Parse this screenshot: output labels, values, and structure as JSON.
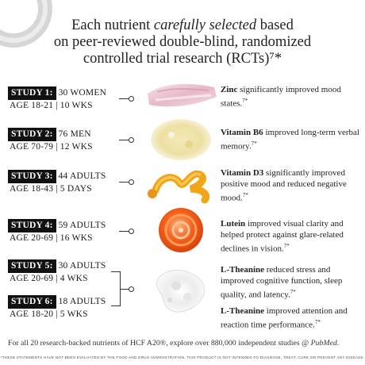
{
  "headline": {
    "line1_pre": "Each nutrient ",
    "line1_em": "carefully selected",
    "line1_post": " based",
    "line2": "on peer-reviewed double-blind, randomized",
    "line3": "controlled trial research (RCTs)⁷*"
  },
  "studies": [
    {
      "tag": "STUDY 1:",
      "group": "30 WOMEN",
      "details": "AGE 18-21 | 10 WKS"
    },
    {
      "tag": "STUDY 2:",
      "group": "76 MEN",
      "details": "AGE 70-79 | 12 WKS"
    },
    {
      "tag": "STUDY 3:",
      "group": "44 ADULTS",
      "details": "AGE 18-43 | 5 DAYS"
    },
    {
      "tag": "STUDY 4:",
      "group": "59 ADULTS",
      "details": "AGE 20-69 | 16 WKS"
    },
    {
      "tag": "STUDY 5:",
      "group": "30 ADULTS",
      "details": "AGE 20-69 | 4 WKS"
    },
    {
      "tag": "STUDY 6:",
      "group": "18 ADULTS",
      "details": "AGE 18-20 | 5 WKS"
    }
  ],
  "findings": [
    {
      "nutrient": "Zinc",
      "text": " significantly improved mood states.",
      "ref": "7*"
    },
    {
      "nutrient": "Vitamin B6",
      "text": " improved long-term verbal memory.",
      "ref": "7*"
    },
    {
      "nutrient": "Vitamin D3",
      "text": " significantly improved positive mood and reduced negative mood.",
      "ref": "7*"
    },
    {
      "nutrient": "Lutein",
      "text": " improved visual clarity and helped protect against glare-related declines in vision.",
      "ref": "7*"
    },
    {
      "nutrient": "L-Theanine",
      "text": " reduced stress and improved cognitive function, sleep quality, and latency.",
      "ref": "7*"
    },
    {
      "nutrient": "L-Theanine",
      "text": " improved attention and reaction time performance.",
      "ref": "7*"
    }
  ],
  "ingredient_icons": [
    "pink-powder-icon",
    "yellow-powder-icon",
    "gold-liquid-swirl-icon",
    "orange-gel-swirl-icon",
    "white-powder-icon"
  ],
  "footer": {
    "text": "For all 20 research-backed nutrients of HCF A20®, explore over 880,000 independent studies @ ",
    "link": "PubMed",
    "period": "."
  },
  "disclaimer": "*THESE STATEMENTS HAVE NOT BEEN EVALUATED BY THE FOOD AND DRUG ADMINISTRATION. THIS PRODUCT IS NOT INTENDED TO DIAGNOSE, TREAT, CURE OR PREVENT ANY DISEASE.",
  "colors": {
    "text": "#1a1a1a",
    "tag_bg": "#111111",
    "tag_text": "#ffffff"
  }
}
